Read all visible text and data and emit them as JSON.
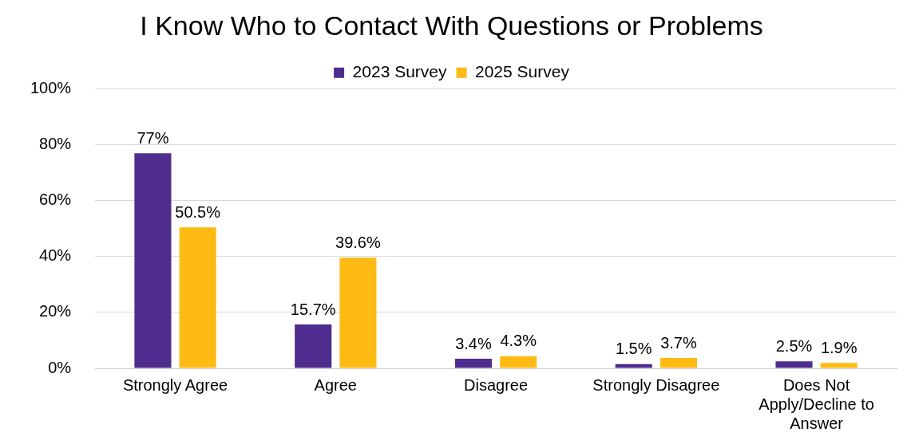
{
  "chart_data": {
    "type": "bar",
    "title": "I Know Who to Contact With Questions or Problems",
    "categories": [
      "Strongly Agree",
      "Agree",
      "Disagree",
      "Strongly Disagree",
      "Does Not Apply/Decline to Answer"
    ],
    "series": [
      {
        "name": "2023 Survey",
        "color": "#4f2d8f",
        "values": [
          77,
          15.7,
          3.4,
          1.5,
          2.5
        ],
        "value_labels": [
          "77%",
          "15.7%",
          "3.4%",
          "1.5%",
          "2.5%"
        ]
      },
      {
        "name": "2025 Survey",
        "color": "#fdbb14",
        "values": [
          50.5,
          39.6,
          4.3,
          3.7,
          1.9
        ],
        "value_labels": [
          "50.5%",
          "39.6%",
          "4.3%",
          "3.7%",
          "1.9%"
        ]
      }
    ],
    "ylim": [
      0,
      100
    ],
    "yticks": [
      {
        "value": 0,
        "label": "0%"
      },
      {
        "value": 20,
        "label": "20%"
      },
      {
        "value": 40,
        "label": "40%"
      },
      {
        "value": 60,
        "label": "60%"
      },
      {
        "value": 80,
        "label": "80%"
      },
      {
        "value": 100,
        "label": "100%"
      }
    ],
    "grid": "y",
    "legend": "top"
  }
}
